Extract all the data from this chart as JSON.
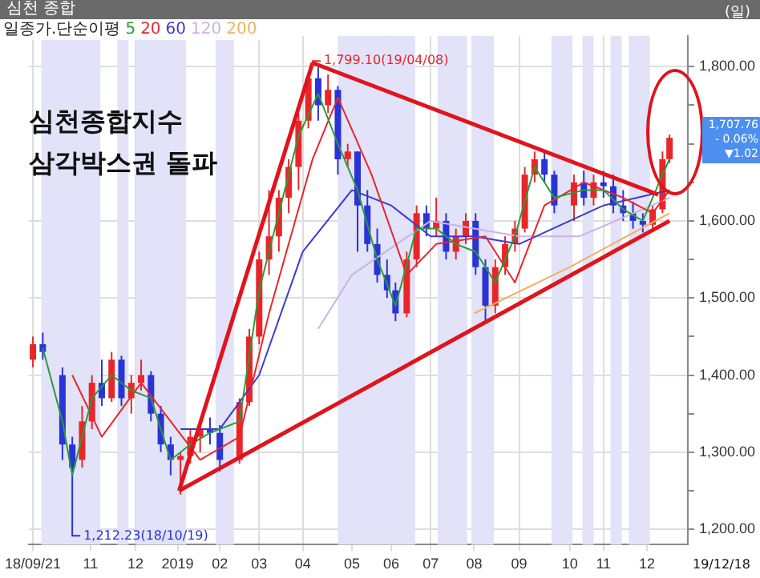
{
  "chart_data": {
    "type": "candlestick",
    "title": "심천 종합",
    "legend_title": "일종가.단순이평",
    "legend": "top left",
    "grid": true,
    "x": [
      "2018-09-21",
      "2018-09-28",
      "2018-10-12",
      "2018-10-19",
      "2018-10-26",
      "2018-11-02",
      "2018-11-09",
      "2018-11-16",
      "2018-11-23",
      "2018-11-30",
      "2018-12-07",
      "2018-12-14",
      "2018-12-21",
      "2018-12-28",
      "2019-01-04",
      "2019-01-11",
      "2019-01-18",
      "2019-01-25",
      "2019-02-01",
      "2019-02-15",
      "2019-02-22",
      "2019-03-01",
      "2019-03-08",
      "2019-03-15",
      "2019-03-22",
      "2019-03-29",
      "2019-04-05",
      "2019-04-12",
      "2019-04-19",
      "2019-04-26",
      "2019-05-03",
      "2019-05-10",
      "2019-05-17",
      "2019-05-24",
      "2019-05-31",
      "2019-06-06",
      "2019-06-14",
      "2019-06-21",
      "2019-06-28",
      "2019-07-05",
      "2019-07-12",
      "2019-07-19",
      "2019-07-26",
      "2019-08-02",
      "2019-08-09",
      "2019-08-16",
      "2019-08-23",
      "2019-08-30",
      "2019-09-06",
      "2019-09-13",
      "2019-09-20",
      "2019-09-27",
      "2019-10-11",
      "2019-10-18",
      "2019-10-25",
      "2019-11-01",
      "2019-11-08",
      "2019-11-15",
      "2019-11-22",
      "2019-11-29",
      "2019-12-06",
      "2019-12-13",
      "2019-12-18"
    ],
    "ohlc": [
      [
        1420,
        1450,
        1410,
        1440
      ],
      [
        1440,
        1455,
        1420,
        1430
      ],
      [
        1400,
        1410,
        1290,
        1310
      ],
      [
        1310,
        1320,
        1212.23,
        1280
      ],
      [
        1290,
        1360,
        1280,
        1340
      ],
      [
        1340,
        1400,
        1330,
        1390
      ],
      [
        1390,
        1420,
        1360,
        1370
      ],
      [
        1370,
        1430,
        1365,
        1420
      ],
      [
        1420,
        1425,
        1360,
        1370
      ],
      [
        1370,
        1400,
        1350,
        1390
      ],
      [
        1390,
        1420,
        1380,
        1400
      ],
      [
        1400,
        1405,
        1340,
        1350
      ],
      [
        1350,
        1360,
        1300,
        1310
      ],
      [
        1310,
        1320,
        1270,
        1290
      ],
      [
        1290,
        1300,
        1245,
        1295
      ],
      [
        1295,
        1330,
        1285,
        1320
      ],
      [
        1320,
        1340,
        1300,
        1330
      ],
      [
        1330,
        1345,
        1310,
        1325
      ],
      [
        1325,
        1335,
        1275,
        1290
      ],
      [
        1290,
        1370,
        1285,
        1365
      ],
      [
        1365,
        1460,
        1360,
        1450
      ],
      [
        1450,
        1560,
        1440,
        1550
      ],
      [
        1550,
        1640,
        1530,
        1580
      ],
      [
        1580,
        1640,
        1560,
        1630
      ],
      [
        1630,
        1680,
        1610,
        1670
      ],
      [
        1670,
        1740,
        1640,
        1730
      ],
      [
        1730,
        1790,
        1720,
        1785
      ],
      [
        1785,
        1799.1,
        1730,
        1750
      ],
      [
        1750,
        1790,
        1740,
        1770
      ],
      [
        1770,
        1775,
        1660,
        1680
      ],
      [
        1680,
        1700,
        1670,
        1690
      ],
      [
        1690,
        1690,
        1560,
        1620
      ],
      [
        1620,
        1640,
        1560,
        1570
      ],
      [
        1570,
        1590,
        1520,
        1530
      ],
      [
        1530,
        1550,
        1500,
        1510
      ],
      [
        1510,
        1520,
        1470,
        1480
      ],
      [
        1480,
        1560,
        1475,
        1550
      ],
      [
        1550,
        1620,
        1540,
        1610
      ],
      [
        1610,
        1620,
        1580,
        1590
      ],
      [
        1590,
        1630,
        1580,
        1600
      ],
      [
        1600,
        1610,
        1550,
        1560
      ],
      [
        1560,
        1590,
        1550,
        1580
      ],
      [
        1580,
        1610,
        1570,
        1600
      ],
      [
        1600,
        1610,
        1530,
        1540
      ],
      [
        1540,
        1550,
        1470,
        1490
      ],
      [
        1490,
        1550,
        1480,
        1540
      ],
      [
        1540,
        1580,
        1530,
        1570
      ],
      [
        1570,
        1600,
        1560,
        1590
      ],
      [
        1590,
        1670,
        1585,
        1660
      ],
      [
        1660,
        1690,
        1650,
        1680
      ],
      [
        1680,
        1690,
        1650,
        1660
      ],
      [
        1660,
        1665,
        1610,
        1620
      ],
      [
        1620,
        1660,
        1600,
        1650
      ],
      [
        1650,
        1665,
        1620,
        1630
      ],
      [
        1630,
        1660,
        1620,
        1650
      ],
      [
        1650,
        1665,
        1630,
        1645
      ],
      [
        1645,
        1660,
        1610,
        1620
      ],
      [
        1620,
        1640,
        1600,
        1610
      ],
      [
        1610,
        1625,
        1590,
        1600
      ],
      [
        1600,
        1610,
        1585,
        1595
      ],
      [
        1595,
        1620,
        1590,
        1615
      ],
      [
        1615,
        1690,
        1610,
        1680
      ],
      [
        1680,
        1712,
        1675,
        1707.76
      ]
    ],
    "colors": [
      "#e8262a",
      "#2a33d8",
      "#2a33d8",
      "#2a33d8",
      "#e8262a",
      "#e8262a",
      "#2a33d8",
      "#e8262a",
      "#2a33d8",
      "#e8262a",
      "#e8262a",
      "#2a33d8",
      "#2a33d8",
      "#2a33d8",
      "#e8262a",
      "#e8262a",
      "#e8262a",
      "#2a33d8",
      "#2a33d8",
      "#e8262a",
      "#e8262a",
      "#e8262a",
      "#e8262a",
      "#e8262a",
      "#e8262a",
      "#e8262a",
      "#e8262a",
      "#2a33d8",
      "#e8262a",
      "#2a33d8",
      "#e8262a",
      "#2a33d8",
      "#2a33d8",
      "#2a33d8",
      "#2a33d8",
      "#2a33d8",
      "#e8262a",
      "#e8262a",
      "#2a33d8",
      "#e8262a",
      "#2a33d8",
      "#e8262a",
      "#e8262a",
      "#2a33d8",
      "#2a33d8",
      "#e8262a",
      "#e8262a",
      "#e8262a",
      "#e8262a",
      "#e8262a",
      "#2a33d8",
      "#2a33d8",
      "#e8262a",
      "#2a33d8",
      "#e8262a",
      "#2a33d8",
      "#2a33d8",
      "#2a33d8",
      "#2a33d8",
      "#2a33d8",
      "#e8262a",
      "#e8262a",
      "#e8262a"
    ],
    "series": [
      {
        "type": "line",
        "name": "5",
        "color": "#2a9a3a",
        "x": [
          "2018-09-28",
          "2018-10-12",
          "2018-10-19",
          "2018-10-26",
          "2018-11-02",
          "2018-11-16",
          "2018-11-30",
          "2018-12-14",
          "2018-12-28",
          "2019-01-11",
          "2019-01-25",
          "2019-02-15",
          "2019-03-01",
          "2019-03-15",
          "2019-03-29",
          "2019-04-12",
          "2019-04-26",
          "2019-05-10",
          "2019-05-24",
          "2019-06-06",
          "2019-06-21",
          "2019-07-05",
          "2019-07-19",
          "2019-08-02",
          "2019-08-16",
          "2019-08-30",
          "2019-09-13",
          "2019-09-27",
          "2019-10-18",
          "2019-11-01",
          "2019-11-15",
          "2019-11-29",
          "2019-12-13",
          "2019-12-18"
        ],
        "values": [
          1435,
          1340,
          1270,
          1320,
          1370,
          1400,
          1380,
          1370,
          1290,
          1310,
          1325,
          1340,
          1510,
          1610,
          1710,
          1765,
          1700,
          1640,
          1550,
          1490,
          1590,
          1590,
          1570,
          1560,
          1520,
          1580,
          1670,
          1630,
          1640,
          1640,
          1615,
          1600,
          1660,
          1680
        ]
      },
      {
        "type": "line",
        "name": "20",
        "color": "#e8262a",
        "x": [
          "2018-10-19",
          "2018-11-09",
          "2018-12-07",
          "2018-12-28",
          "2019-01-18",
          "2019-02-15",
          "2019-03-08",
          "2019-04-08",
          "2019-04-26",
          "2019-05-20",
          "2019-06-14",
          "2019-07-05",
          "2019-08-09",
          "2019-08-30",
          "2019-09-20",
          "2019-10-18",
          "2019-11-15",
          "2019-12-06",
          "2019-12-18"
        ],
        "values": [
          1400,
          1320,
          1390,
          1340,
          1290,
          1320,
          1480,
          1680,
          1760,
          1660,
          1530,
          1570,
          1580,
          1520,
          1620,
          1650,
          1630,
          1610,
          1640
        ]
      },
      {
        "type": "line",
        "name": "60",
        "color": "#3a3ad0",
        "x": [
          "2019-01-04",
          "2019-02-01",
          "2019-03-01",
          "2019-04-01",
          "2019-05-06",
          "2019-06-03",
          "2019-07-01",
          "2019-08-01",
          "2019-09-02",
          "2019-10-08",
          "2019-11-01",
          "2019-12-18"
        ],
        "values": [
          1330,
          1330,
          1400,
          1560,
          1640,
          1620,
          1580,
          1580,
          1570,
          1600,
          1620,
          1640
        ]
      },
      {
        "type": "line",
        "name": "120",
        "color": "#c8b4e6",
        "x": [
          "2019-04-12",
          "2019-05-06",
          "2019-07-01",
          "2019-09-02",
          "2019-10-15",
          "2019-12-18"
        ],
        "values": [
          1460,
          1530,
          1600,
          1580,
          1580,
          1630
        ]
      },
      {
        "type": "line",
        "name": "200",
        "color": "#f0b060",
        "x": [
          "2019-08-01",
          "2019-10-08",
          "2019-12-18"
        ],
        "values": [
          1480,
          1540,
          1610
        ]
      },
      {
        "type": "line",
        "color": "#e0141c",
        "x": [
          "2019-01-03",
          "2019-04-08"
        ],
        "values": [
          1250,
          1805
        ]
      },
      {
        "type": "line",
        "color": "#e0141c",
        "x": [
          "2019-04-08",
          "2019-12-10"
        ],
        "values": [
          1805,
          1634
        ]
      },
      {
        "type": "line",
        "color": "#e0141c",
        "x": [
          "2019-01-03",
          "2019-12-18"
        ],
        "values": [
          1250,
          1600
        ]
      }
    ],
    "bands": [
      {
        "axis": "x",
        "from": "2018-09-27",
        "to": "2018-11-08",
        "color": "#e2e2f8"
      },
      {
        "axis": "x",
        "from": "2018-11-20",
        "to": "2018-11-28",
        "color": "#e2e2f8"
      },
      {
        "axis": "x",
        "from": "2018-12-03",
        "to": "2019-01-08",
        "color": "#e2e2f8"
      },
      {
        "axis": "x",
        "from": "2019-01-29",
        "to": "2019-02-11",
        "color": "#e2e2f8"
      },
      {
        "axis": "x",
        "from": "2019-04-26",
        "to": "2019-06-20",
        "color": "#e2e2f8"
      },
      {
        "axis": "x",
        "from": "2019-07-06",
        "to": "2019-07-27",
        "color": "#e2e2f8"
      },
      {
        "axis": "x",
        "from": "2019-07-30",
        "to": "2019-08-15",
        "color": "#e2e2f8"
      },
      {
        "axis": "x",
        "from": "2019-09-25",
        "to": "2019-10-10",
        "color": "#e2e2f8"
      },
      {
        "axis": "x",
        "from": "2019-10-17",
        "to": "2019-10-25",
        "color": "#e2e2f8"
      },
      {
        "axis": "x",
        "from": "2019-11-06",
        "to": "2019-11-14",
        "color": "#e2e2f8"
      },
      {
        "axis": "x",
        "from": "2019-11-19",
        "to": "2019-12-04",
        "color": "#e2e2f8"
      }
    ],
    "xlim": [
      "2018-09-18",
      "2019-12-31"
    ],
    "xticks": [
      {
        "value": "2018-09-21",
        "label": "18/09/21"
      },
      {
        "value": "2018-11-01",
        "label": "11"
      },
      {
        "value": "2018-12-03",
        "label": "12"
      },
      {
        "value": "2019-01-02",
        "label": "2019"
      },
      {
        "value": "2019-02-01",
        "label": "02"
      },
      {
        "value": "2019-03-01",
        "label": "03"
      },
      {
        "value": "2019-04-01",
        "label": "04"
      },
      {
        "value": "2019-05-06",
        "label": "05"
      },
      {
        "value": "2019-06-03",
        "label": "06"
      },
      {
        "value": "2019-07-01",
        "label": "07"
      },
      {
        "value": "2019-08-01",
        "label": "08"
      },
      {
        "value": "2019-09-02",
        "label": "09"
      },
      {
        "value": "2019-10-08",
        "label": "10"
      },
      {
        "value": "2019-11-01",
        "label": "11"
      },
      {
        "value": "2019-12-02",
        "label": "12"
      }
    ],
    "ylim": [
      1180,
      1840
    ],
    "yticks": [
      {
        "value": 1200,
        "label": "1,200.00"
      },
      {
        "value": 1250,
        "label": null
      },
      {
        "value": 1300,
        "label": "1,300.00"
      },
      {
        "value": 1350,
        "label": null
      },
      {
        "value": 1400,
        "label": "1,400.00"
      },
      {
        "value": 1450,
        "label": null
      },
      {
        "value": 1500,
        "label": "1,500.00"
      },
      {
        "value": 1550,
        "label": null
      },
      {
        "value": 1600,
        "label": "1,600.00"
      },
      {
        "value": 1650,
        "label": null
      },
      {
        "value": 1700,
        "label": null
      },
      {
        "value": 1750,
        "label": null
      },
      {
        "value": 1800,
        "label": "1,800.00"
      }
    ],
    "annotations": [
      "심천종합지수",
      "삼각박스권  돌파",
      {
        "text": "1,799.10(19/04/08)",
        "x": "2019-04-08",
        "y": 1799.1
      },
      {
        "text": "1,212.23(18/10/19)",
        "x": "2018-10-19",
        "y": 1212.23
      },
      "(일)",
      "1,707.76",
      "- 0.06%",
      "▼1.02",
      "19/12/18"
    ]
  }
}
